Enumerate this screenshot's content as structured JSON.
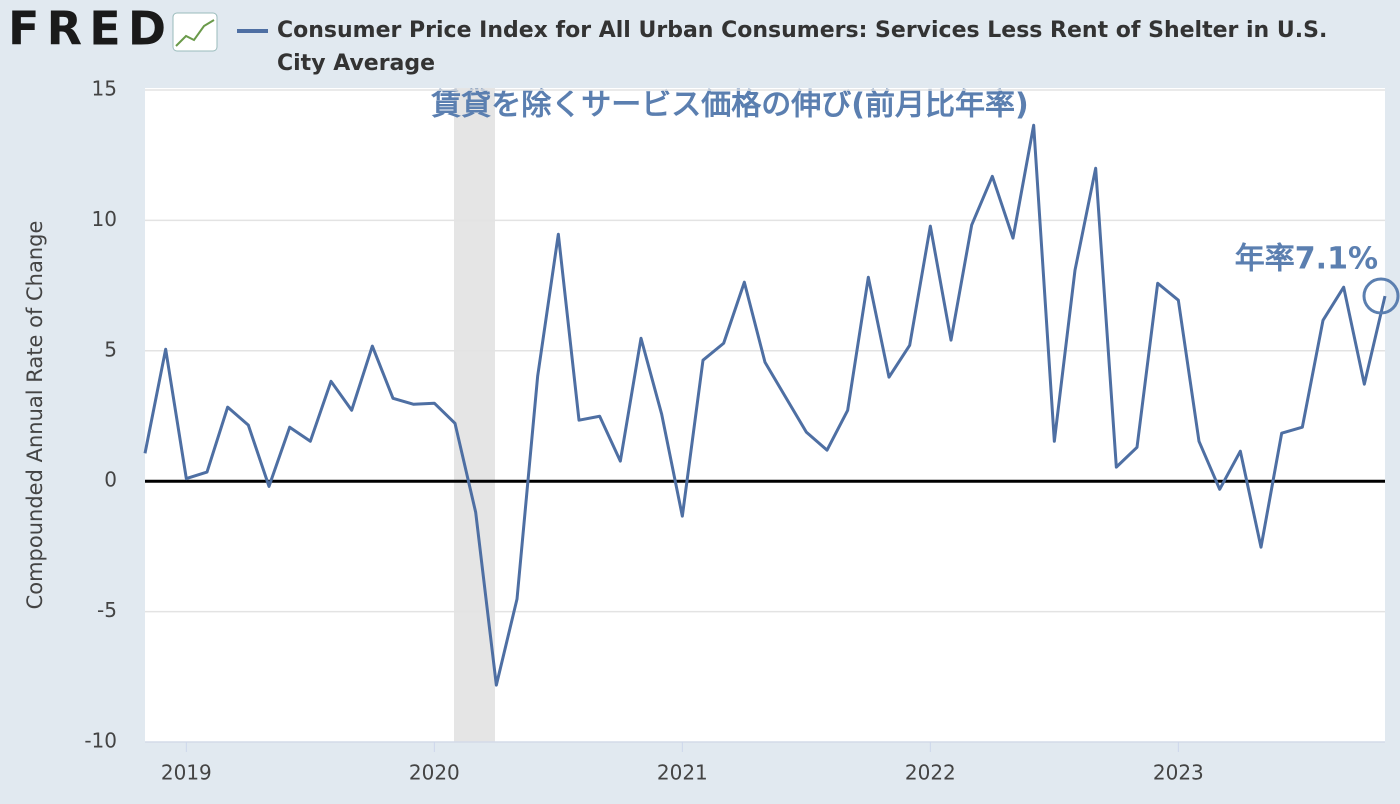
{
  "logo": "FRED",
  "chart_data": {
    "type": "line",
    "ylabel": "Compounded Annual Rate of Change",
    "annotations": [
      "賃貸を除くサービス価格の伸び(前月比年率)",
      "年率7.1%"
    ],
    "categories": [
      null,
      null,
      "2019",
      null,
      null,
      null,
      null,
      null,
      null,
      null,
      null,
      null,
      null,
      null,
      "2020",
      null,
      null,
      null,
      null,
      null,
      null,
      null,
      null,
      null,
      null,
      null,
      "2021",
      null,
      null,
      null,
      null,
      null,
      null,
      null,
      null,
      null,
      null,
      null,
      "2022",
      null,
      null,
      null,
      null,
      null,
      null,
      null,
      null,
      null,
      null,
      null,
      "2023",
      null,
      null,
      null,
      null,
      null,
      null,
      null,
      null,
      null,
      null
    ],
    "series": [
      {
        "name": "Consumer Price Index for All Urban Consumers: Services Less Rent of Shelter in U.S. City Average",
        "color": "#4e6fa3",
        "values": [
          1.07,
          5.06,
          0.1,
          0.35,
          2.84,
          2.15,
          -0.2,
          2.07,
          1.53,
          3.83,
          2.72,
          5.18,
          3.18,
          2.95,
          2.99,
          2.22,
          -1.19,
          -7.82,
          -4.52,
          4.03,
          9.47,
          2.34,
          2.49,
          0.77,
          5.48,
          2.57,
          -1.34,
          4.64,
          5.29,
          7.63,
          4.56,
          3.22,
          1.88,
          1.19,
          2.72,
          7.82,
          3.99,
          5.21,
          9.78,
          5.41,
          9.82,
          11.69,
          9.32,
          13.65,
          1.53,
          8.09,
          12.0,
          0.54,
          1.3,
          7.59,
          6.94,
          1.53,
          -0.31,
          1.15,
          -2.53,
          1.84,
          2.07,
          6.17,
          7.44,
          3.72,
          7.1
        ]
      }
    ],
    "ylim": [
      -10,
      15
    ],
    "yticks": [
      -10,
      -5,
      0,
      5,
      10,
      15
    ],
    "grid": true,
    "zero_line": true
  }
}
